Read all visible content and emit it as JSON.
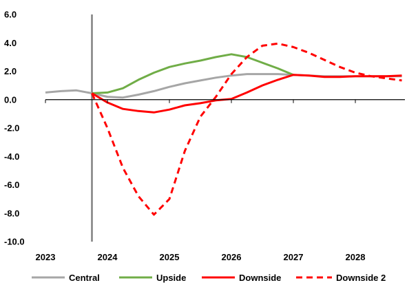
{
  "chart_data": {
    "type": "line",
    "title": "",
    "xlabel": "",
    "ylabel": "",
    "xlim": [
      2023,
      2028.8
    ],
    "ylim": [
      -10,
      6
    ],
    "y_ticks": [
      6,
      4,
      2,
      0,
      -2,
      -4,
      -6,
      -8,
      -10
    ],
    "y_tick_labels": [
      "6.0",
      "4.0",
      "2.0",
      "0.0",
      "-2.0",
      "-4.0",
      "-6.0",
      "-8.0",
      "-10.0"
    ],
    "x_ticks": [
      2023,
      2024,
      2025,
      2026,
      2027,
      2028
    ],
    "x_tick_labels": [
      "2023",
      "2024",
      "2025",
      "2026",
      "2027",
      "2028"
    ],
    "grid": false,
    "legend_position": "bottom",
    "vertical_marker_x": 2023.75,
    "series": [
      {
        "name": "Central",
        "color": "#a6a6a6",
        "style": "solid",
        "x": [
          2023,
          2023.25,
          2023.5,
          2023.75,
          2024,
          2024.25,
          2024.5,
          2024.75,
          2025,
          2025.25,
          2025.5,
          2025.75,
          2026,
          2026.25,
          2026.5,
          2026.75,
          2027,
          2027.25,
          2027.5,
          2027.75,
          2028,
          2028.25,
          2028.5,
          2028.75
        ],
        "values": [
          0.5,
          0.6,
          0.65,
          0.45,
          0.2,
          0.15,
          0.35,
          0.6,
          0.9,
          1.15,
          1.35,
          1.55,
          1.7,
          1.8,
          1.8,
          1.8,
          1.75,
          1.7,
          1.65,
          1.65,
          1.65,
          1.65,
          1.65,
          1.65
        ]
      },
      {
        "name": "Upside",
        "color": "#70ad47",
        "style": "solid",
        "x": [
          2023.75,
          2024,
          2024.25,
          2024.5,
          2024.75,
          2025,
          2025.25,
          2025.5,
          2025.75,
          2026,
          2026.25,
          2026.5,
          2026.75,
          2027
        ],
        "values": [
          0.45,
          0.5,
          0.8,
          1.4,
          1.9,
          2.3,
          2.55,
          2.75,
          3.0,
          3.2,
          3.0,
          2.6,
          2.2,
          1.75
        ]
      },
      {
        "name": "Downside",
        "color": "#ff0000",
        "style": "solid",
        "x": [
          2023.75,
          2024,
          2024.25,
          2024.5,
          2024.75,
          2025,
          2025.25,
          2025.5,
          2025.75,
          2026,
          2026.25,
          2026.5,
          2026.75,
          2027,
          2027.25,
          2027.5,
          2027.75,
          2028,
          2028.25,
          2028.5,
          2028.75
        ],
        "values": [
          0.45,
          -0.2,
          -0.65,
          -0.8,
          -0.9,
          -0.7,
          -0.4,
          -0.25,
          -0.05,
          0.05,
          0.5,
          1.0,
          1.4,
          1.75,
          1.7,
          1.6,
          1.6,
          1.65,
          1.65,
          1.65,
          1.7
        ]
      },
      {
        "name": "Downside 2",
        "color": "#ff0000",
        "style": "dashed",
        "x": [
          2023.75,
          2024,
          2024.25,
          2024.5,
          2024.75,
          2025,
          2025.25,
          2025.5,
          2025.75,
          2026,
          2026.25,
          2026.5,
          2026.75,
          2027,
          2027.25,
          2027.5,
          2027.75,
          2028,
          2028.25,
          2028.5,
          2028.75
        ],
        "values": [
          0.45,
          -2.0,
          -4.8,
          -6.8,
          -8.1,
          -7.0,
          -3.6,
          -1.2,
          0.2,
          1.8,
          3.0,
          3.8,
          3.95,
          3.7,
          3.3,
          2.8,
          2.3,
          1.9,
          1.65,
          1.5,
          1.35
        ]
      }
    ]
  }
}
